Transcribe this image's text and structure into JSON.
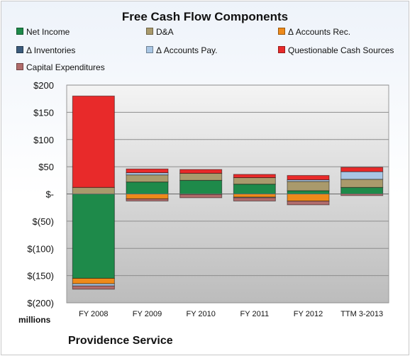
{
  "chart_data": {
    "type": "bar",
    "stacked": true,
    "title": "Free Cash Flow Components",
    "ylabel": "millions",
    "footer": "Providence Service",
    "ylim": [
      -200,
      200
    ],
    "yticks": [
      {
        "value": 200,
        "label": "$200"
      },
      {
        "value": 150,
        "label": "$150"
      },
      {
        "value": 100,
        "label": "$100"
      },
      {
        "value": 50,
        "label": "$50"
      },
      {
        "value": 0,
        "label": "$-"
      },
      {
        "value": -50,
        "label": "$(50)"
      },
      {
        "value": -100,
        "label": "$(100)"
      },
      {
        "value": -150,
        "label": "$(150)"
      },
      {
        "value": -200,
        "label": "$(200)"
      }
    ],
    "grid": true,
    "legend_position": "top",
    "categories": [
      "FY 2008",
      "FY 2009",
      "FY 2010",
      "FY 2011",
      "FY 2012",
      "TTM 3-2013"
    ],
    "series": [
      {
        "name": "Net Income",
        "color": "#1e8a4a",
        "values": [
          -155,
          22,
          25,
          18,
          6,
          12
        ]
      },
      {
        "name": "D&A",
        "color": "#a99a6c",
        "values": [
          12,
          13,
          13,
          12,
          17,
          15
        ]
      },
      {
        "name": "Δ Accounts Rec.",
        "color": "#ee8a1a",
        "values": [
          -10,
          -9,
          -1,
          -6,
          -13,
          0
        ]
      },
      {
        "name": "Δ Inventories",
        "color": "#3b5b7c",
        "values": [
          0,
          0,
          0,
          0,
          0,
          0
        ]
      },
      {
        "name": "Δ Accounts Pay.",
        "color": "#a9c6e4",
        "values": [
          -4,
          4,
          0,
          -1,
          3,
          14
        ]
      },
      {
        "name": "Questionable Cash Sources",
        "color": "#e82a2a",
        "values": [
          168,
          7,
          7,
          6,
          8,
          8
        ]
      },
      {
        "name": "Capital Expenditures",
        "color": "#b06b6b",
        "values": [
          -6,
          -4,
          -6,
          -6,
          -7,
          -3
        ]
      }
    ]
  }
}
